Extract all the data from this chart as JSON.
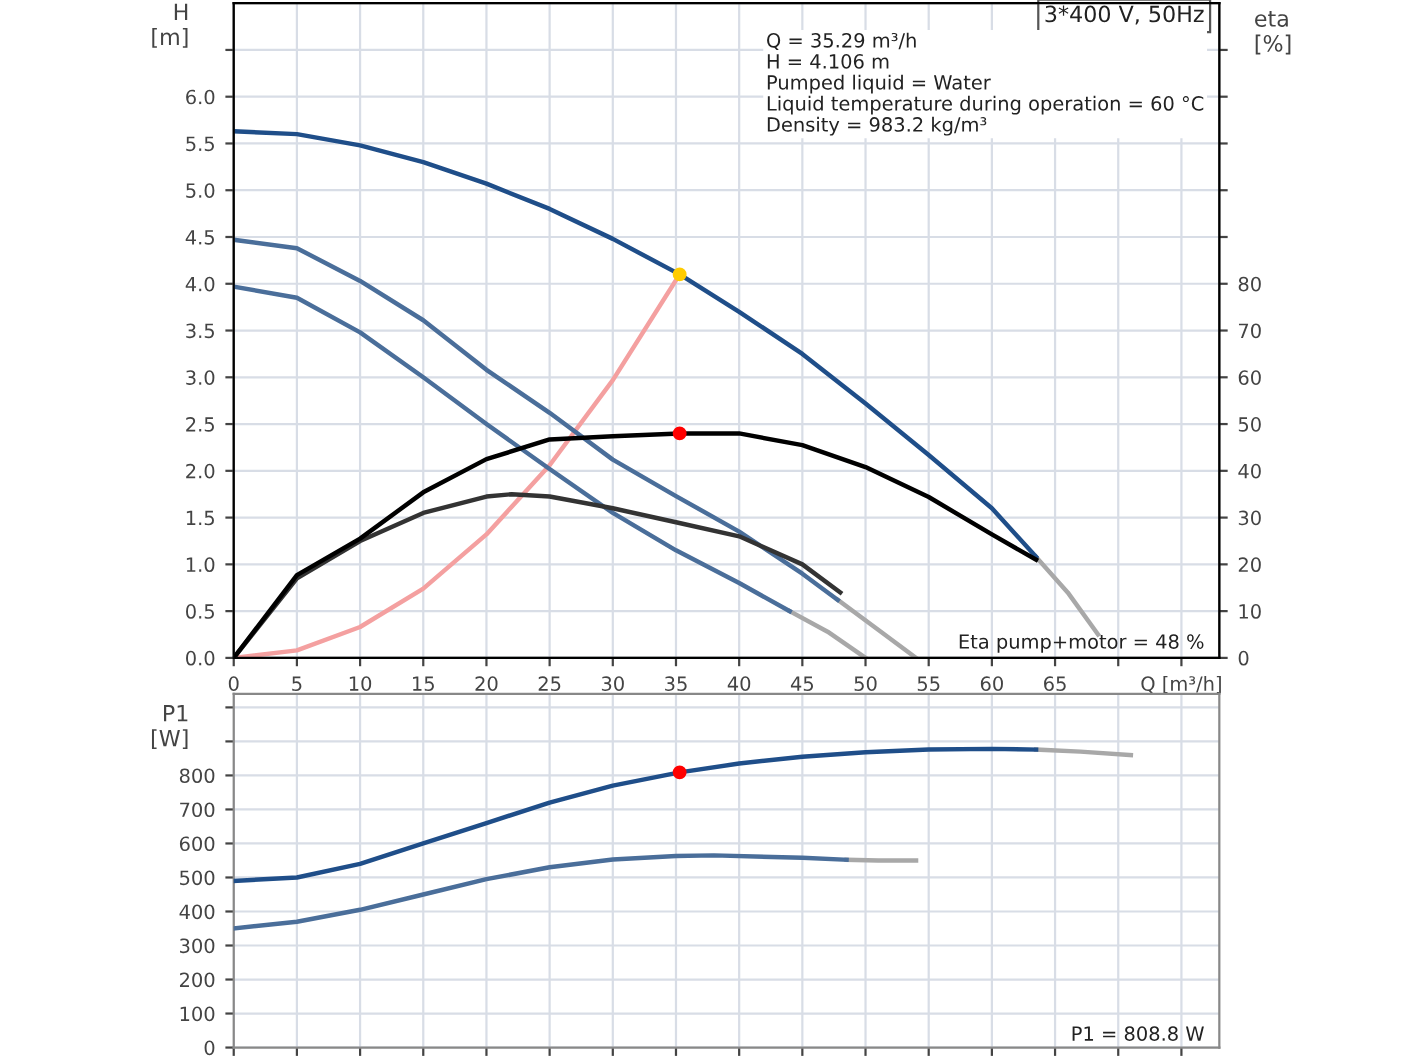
{
  "chart_data": [
    {
      "type": "line",
      "title": "3*400 V, 50Hz",
      "ylabel": "H\n[m]",
      "y2label": "eta\n[%]",
      "xlim": [
        0,
        78
      ],
      "xticks": [
        0,
        5,
        10,
        15,
        20,
        25,
        30,
        35,
        40,
        45,
        50,
        55,
        60,
        65,
        {
          "value": 70,
          "label": null
        },
        {
          "value": 75,
          "label": "Q [m³/h]"
        }
      ],
      "ylim": [
        0,
        7
      ],
      "yticks": [
        {
          "value": 0,
          "label": "0.0"
        },
        0.5,
        {
          "value": 1,
          "label": "1.0"
        },
        1.5,
        {
          "value": 2,
          "label": "2.0"
        },
        2.5,
        {
          "value": 3,
          "label": "3.0"
        },
        3.5,
        {
          "value": 4,
          "label": "4.0"
        },
        4.5,
        {
          "value": 5,
          "label": "5.0"
        },
        5.5,
        {
          "value": 6,
          "label": "6.0"
        },
        {
          "value": 6.5,
          "label": null
        }
      ],
      "y2lim": [
        0,
        140
      ],
      "y2ticks": [
        0,
        10,
        20,
        30,
        40,
        50,
        60,
        70,
        80,
        {
          "value": 90,
          "label": null
        },
        {
          "value": 100,
          "label": null
        },
        {
          "value": 110,
          "label": null
        },
        {
          "value": 120,
          "label": null
        },
        {
          "value": 130,
          "label": null
        }
      ],
      "grid": true,
      "legend": false,
      "annotations": [
        "Q = 35.29 m³/h\nH = 4.106 m\nPumped liquid = Water\nLiquid temperature during operation = 60 °C\nDensity = 983.2 kg/m³",
        "Eta pump+motor = 48 %"
      ],
      "series": [
        {
          "color": "#a8a8a8",
          "x": [
            63.5,
            66,
            68.4
          ],
          "values": [
            1.08,
            0.7,
            0.25
          ]
        },
        {
          "color": "#a8a8a8",
          "x": [
            47.8,
            51,
            54
          ],
          "values": [
            0.62,
            0.3,
            0.0
          ]
        },
        {
          "color": "#a8a8a8",
          "x": [
            44,
            47,
            50
          ],
          "values": [
            0.5,
            0.28,
            0.0
          ]
        },
        {
          "color": "#f4a0a0",
          "x": [
            0,
            5,
            10,
            15,
            20,
            25,
            30,
            35.29
          ],
          "values": [
            0,
            0.08,
            0.33,
            0.74,
            1.32,
            2.06,
            2.97,
            4.1
          ]
        },
        {
          "color": "#4a6e9a",
          "x": [
            0,
            5,
            10,
            15,
            20,
            25,
            30,
            35,
            40,
            44
          ],
          "values": [
            3.97,
            3.85,
            3.48,
            3.0,
            2.5,
            2.02,
            1.55,
            1.15,
            0.8,
            0.5
          ]
        },
        {
          "color": "#4a6e9a",
          "x": [
            0,
            5,
            10,
            15,
            20,
            25,
            30,
            35,
            40,
            45,
            47.8
          ],
          "values": [
            4.47,
            4.38,
            4.03,
            3.61,
            3.08,
            2.62,
            2.12,
            1.73,
            1.35,
            0.9,
            0.62
          ]
        },
        {
          "color": "#333333",
          "axis": "y2",
          "x": [
            0,
            5,
            10,
            15,
            20,
            22,
            25,
            30,
            35,
            40,
            45,
            48
          ],
          "values": [
            0,
            17,
            25,
            31,
            34.5,
            35,
            34.5,
            32,
            29,
            26,
            20,
            14
          ]
        },
        {
          "color": "#000000",
          "axis": "y2",
          "x": [
            0,
            5,
            10,
            15,
            20,
            25,
            30,
            35.29,
            40,
            45,
            50,
            55,
            60,
            63.5
          ],
          "values": [
            0,
            17.7,
            25.5,
            35.4,
            42.5,
            46.7,
            47.4,
            48,
            48,
            45.5,
            40.8,
            34.4,
            26.4,
            21
          ]
        },
        {
          "color": "#1f4e89",
          "x": [
            0,
            5,
            10,
            15,
            20,
            25,
            30,
            35.29,
            40,
            45,
            50,
            55,
            60,
            63.5
          ],
          "values": [
            5.63,
            5.6,
            5.48,
            5.3,
            5.07,
            4.8,
            4.48,
            4.1,
            3.7,
            3.25,
            2.72,
            2.17,
            1.6,
            1.08
          ]
        },
        {
          "type": "scatter",
          "color": "#ffcc00",
          "x": [
            35.29
          ],
          "values": [
            4.1
          ]
        },
        {
          "type": "scatter",
          "color": "#ff0000",
          "axis": "y2",
          "x": [
            35.29
          ],
          "values": [
            48
          ]
        }
      ]
    },
    {
      "type": "line",
      "ylabel": "P1\n[W]",
      "tick_labels": "y",
      "xlim": [
        0,
        78
      ],
      "xticks": [
        0,
        5,
        10,
        15,
        20,
        25,
        30,
        35,
        40,
        45,
        50,
        55,
        60,
        65,
        70,
        75
      ],
      "ylim": [
        0,
        1040
      ],
      "yticks": [
        0,
        100,
        200,
        300,
        400,
        500,
        600,
        700,
        800,
        {
          "value": 900,
          "label": null
        },
        {
          "value": 1000,
          "label": null
        }
      ],
      "grid": true,
      "legend": false,
      "annotations": [
        "P1 = 808.8 W"
      ],
      "series": [
        {
          "color": "#a8a8a8",
          "x": [
            63.5,
            67,
            71
          ],
          "values": [
            876,
            870,
            860
          ]
        },
        {
          "color": "#a8a8a8",
          "x": [
            48.5,
            51,
            54
          ],
          "values": [
            552,
            550,
            550
          ]
        },
        {
          "color": "#4a6e9a",
          "x": [
            0,
            5,
            10,
            15,
            20,
            25,
            30,
            35,
            38,
            45,
            48.5
          ],
          "values": [
            350,
            370,
            405,
            450,
            495,
            530,
            553,
            563,
            565,
            558,
            552
          ]
        },
        {
          "color": "#1f4e89",
          "x": [
            0,
            5,
            10,
            15,
            20,
            25,
            30,
            35.29,
            40,
            45,
            50,
            55,
            60,
            63.5
          ],
          "values": [
            490,
            500,
            540,
            600,
            660,
            720,
            770,
            809,
            835,
            855,
            868,
            876,
            878,
            876
          ]
        },
        {
          "type": "scatter",
          "color": "#ff0000",
          "x": [
            35.29
          ],
          "values": [
            809
          ]
        }
      ]
    }
  ]
}
